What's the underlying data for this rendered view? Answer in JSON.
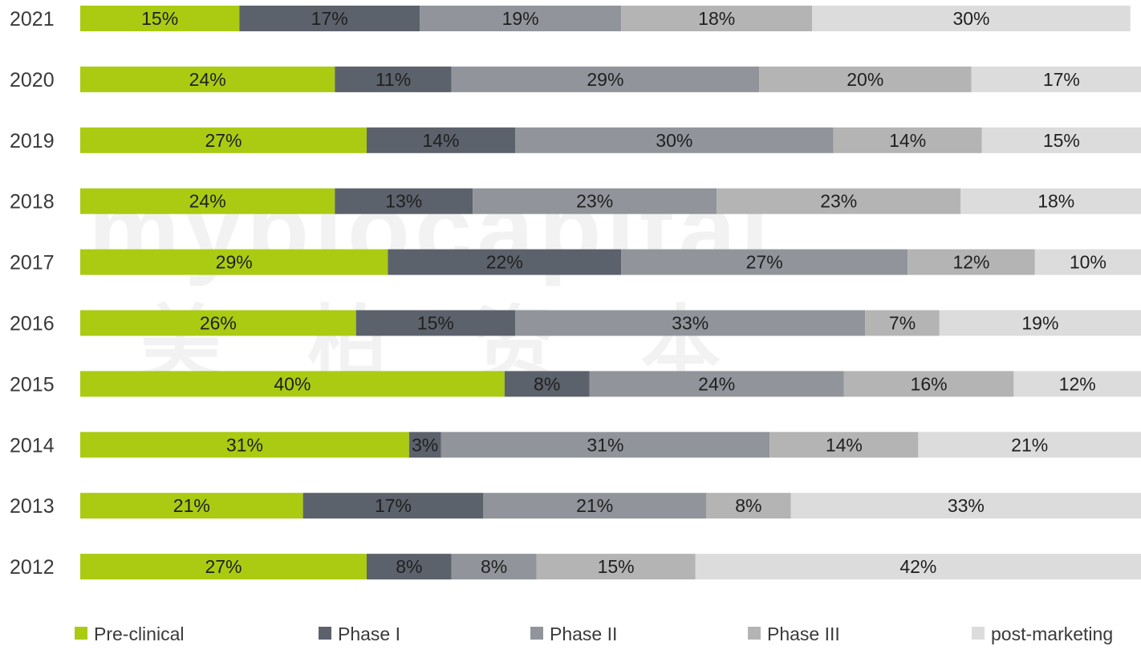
{
  "chart_data": {
    "type": "bar",
    "orientation": "horizontal",
    "stacked": true,
    "percent": true,
    "categories": [
      "2021",
      "2020",
      "2019",
      "2018",
      "2017",
      "2016",
      "2015",
      "2014",
      "2013",
      "2012"
    ],
    "series": [
      {
        "name": "Pre-clinical",
        "color": "#aacb12",
        "values": [
          15,
          24,
          27,
          24,
          29,
          26,
          40,
          31,
          21,
          27
        ]
      },
      {
        "name": "Phase I",
        "color": "#5c626c",
        "values": [
          17,
          11,
          14,
          13,
          22,
          15,
          8,
          3,
          17,
          8
        ]
      },
      {
        "name": "Phase II",
        "color": "#91959b",
        "values": [
          19,
          29,
          30,
          23,
          27,
          33,
          24,
          31,
          21,
          8
        ]
      },
      {
        "name": "Phase III",
        "color": "#b4b4b4",
        "values": [
          18,
          20,
          14,
          23,
          12,
          7,
          16,
          14,
          8,
          15
        ]
      },
      {
        "name": "post-marketing",
        "color": "#dcdcdc",
        "values": [
          30,
          17,
          15,
          18,
          10,
          19,
          12,
          21,
          33,
          42
        ]
      }
    ],
    "value_suffix": "%",
    "xlim": [
      0,
      100
    ],
    "legend_position": "bottom",
    "grid": false
  },
  "watermark": {
    "text": "mybiocapital",
    "subtext": "美 柏 资 本"
  }
}
